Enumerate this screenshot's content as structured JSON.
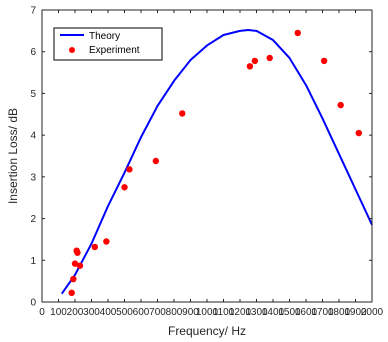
{
  "chart_data": {
    "type": "line",
    "title": "",
    "xlabel": "Frequency/ Hz",
    "ylabel": "Insertion Loss/ dB",
    "xlim": [
      0,
      2000
    ],
    "ylim": [
      0,
      7
    ],
    "xticks": [
      0,
      100,
      200,
      300,
      400,
      500,
      600,
      700,
      800,
      900,
      1000,
      1100,
      1200,
      1300,
      1400,
      1500,
      1600,
      1700,
      1800,
      1900,
      2000
    ],
    "yticks": [
      0,
      1,
      2,
      3,
      4,
      5,
      6,
      7
    ],
    "xtick_labels": [
      "0",
      "100",
      "200",
      "300",
      "400",
      "500",
      "600",
      "700",
      "800",
      "900",
      "1000",
      "1100",
      "1200",
      "1300",
      "1400",
      "1500",
      "1600",
      "1700",
      "1800",
      "1900",
      "2000"
    ],
    "ytick_labels": [
      "0",
      "1",
      "2",
      "3",
      "4",
      "5",
      "6",
      "7"
    ],
    "grid": false,
    "legend_position": "top-left",
    "series": [
      {
        "name": "Theory",
        "kind": "line",
        "color": "#0000ff",
        "x": [
          120,
          200,
          300,
          400,
          500,
          600,
          700,
          800,
          900,
          1000,
          1100,
          1200,
          1250,
          1300,
          1400,
          1500,
          1600,
          1700,
          1800,
          1900,
          2000
        ],
        "y": [
          0.2,
          0.65,
          1.4,
          2.3,
          3.1,
          3.95,
          4.7,
          5.3,
          5.8,
          6.15,
          6.4,
          6.5,
          6.52,
          6.5,
          6.28,
          5.85,
          5.2,
          4.4,
          3.55,
          2.7,
          1.85
        ]
      },
      {
        "name": "Experiment",
        "kind": "scatter",
        "color": "#ff0000",
        "x": [
          180,
          190,
          200,
          210,
          215,
          230,
          320,
          390,
          500,
          530,
          690,
          850,
          1260,
          1290,
          1380,
          1550,
          1710,
          1810,
          1920
        ],
        "y": [
          0.22,
          0.55,
          0.92,
          1.23,
          1.18,
          0.87,
          1.32,
          1.45,
          2.75,
          3.18,
          3.38,
          4.52,
          5.65,
          5.78,
          5.85,
          6.45,
          5.78,
          4.72,
          4.05
        ]
      }
    ]
  }
}
